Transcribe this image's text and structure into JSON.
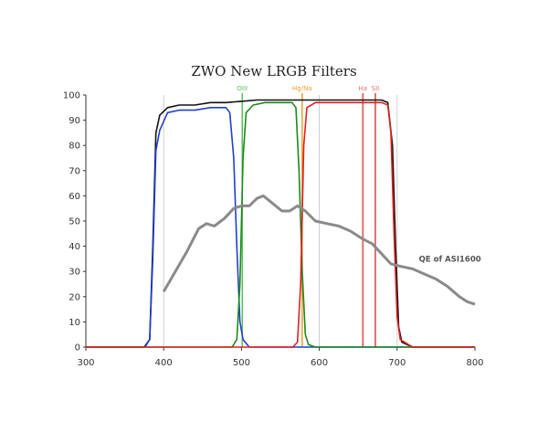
{
  "chart_data": {
    "type": "line",
    "title": "ZWO New LRGB Filters",
    "xlabel": "",
    "ylabel": "",
    "xlim": [
      300,
      800
    ],
    "ylim": [
      0,
      100
    ],
    "xticks": [
      300,
      400,
      500,
      600,
      700,
      800
    ],
    "yticks": [
      0,
      10,
      20,
      30,
      40,
      50,
      60,
      70,
      80,
      90,
      100
    ],
    "grid": false,
    "series": [
      {
        "color": "#111111",
        "points": [
          [
            300,
            0
          ],
          [
            375,
            0
          ],
          [
            382,
            3
          ],
          [
            386,
            40
          ],
          [
            390,
            85
          ],
          [
            395,
            92
          ],
          [
            405,
            95
          ],
          [
            420,
            96
          ],
          [
            440,
            96
          ],
          [
            460,
            97
          ],
          [
            480,
            97
          ],
          [
            500,
            97.5
          ],
          [
            520,
            98
          ],
          [
            540,
            98
          ],
          [
            560,
            98
          ],
          [
            580,
            98
          ],
          [
            600,
            98
          ],
          [
            620,
            98
          ],
          [
            640,
            98
          ],
          [
            660,
            98
          ],
          [
            680,
            98
          ],
          [
            688,
            97
          ],
          [
            694,
            80
          ],
          [
            698,
            40
          ],
          [
            702,
            8
          ],
          [
            706,
            2
          ],
          [
            720,
            0
          ],
          [
            800,
            0
          ]
        ]
      },
      {
        "color": "#1f3fcf",
        "points": [
          [
            300,
            0
          ],
          [
            376,
            0
          ],
          [
            382,
            3
          ],
          [
            386,
            35
          ],
          [
            390,
            78
          ],
          [
            395,
            86
          ],
          [
            405,
            93
          ],
          [
            420,
            94
          ],
          [
            440,
            94
          ],
          [
            460,
            95
          ],
          [
            480,
            95
          ],
          [
            485,
            93
          ],
          [
            490,
            75
          ],
          [
            494,
            40
          ],
          [
            498,
            10
          ],
          [
            502,
            3
          ],
          [
            510,
            0
          ],
          [
            800,
            0
          ]
        ]
      },
      {
        "color": "#1a8a1a",
        "points": [
          [
            300,
            0
          ],
          [
            488,
            0
          ],
          [
            494,
            3
          ],
          [
            498,
            25
          ],
          [
            502,
            75
          ],
          [
            506,
            93
          ],
          [
            515,
            96
          ],
          [
            530,
            97
          ],
          [
            550,
            97
          ],
          [
            565,
            97
          ],
          [
            570,
            95
          ],
          [
            574,
            70
          ],
          [
            578,
            30
          ],
          [
            582,
            5
          ],
          [
            586,
            1
          ],
          [
            595,
            0
          ],
          [
            800,
            0
          ]
        ]
      },
      {
        "color": "#e02020",
        "points": [
          [
            300,
            0
          ],
          [
            566,
            0
          ],
          [
            572,
            2
          ],
          [
            576,
            25
          ],
          [
            580,
            80
          ],
          [
            584,
            95
          ],
          [
            595,
            97
          ],
          [
            620,
            97
          ],
          [
            640,
            97
          ],
          [
            660,
            97
          ],
          [
            680,
            97
          ],
          [
            688,
            96
          ],
          [
            692,
            85
          ],
          [
            696,
            45
          ],
          [
            700,
            12
          ],
          [
            704,
            3
          ],
          [
            720,
            0
          ],
          [
            800,
            0
          ]
        ]
      },
      {
        "name": "QE of ASI1600",
        "color": "#8a8a8a",
        "points": [
          [
            400,
            22
          ],
          [
            415,
            30
          ],
          [
            430,
            38
          ],
          [
            445,
            47
          ],
          [
            455,
            49
          ],
          [
            465,
            48
          ],
          [
            478,
            51
          ],
          [
            490,
            55
          ],
          [
            500,
            56
          ],
          [
            510,
            56
          ],
          [
            520,
            59
          ],
          [
            528,
            60
          ],
          [
            540,
            57
          ],
          [
            552,
            54
          ],
          [
            562,
            54
          ],
          [
            572,
            56
          ],
          [
            582,
            54
          ],
          [
            595,
            50
          ],
          [
            610,
            49
          ],
          [
            625,
            48
          ],
          [
            640,
            46
          ],
          [
            655,
            43
          ],
          [
            668,
            41
          ],
          [
            680,
            37
          ],
          [
            692,
            33
          ],
          [
            705,
            32
          ],
          [
            720,
            31
          ],
          [
            735,
            29
          ],
          [
            750,
            27
          ],
          [
            765,
            24
          ],
          [
            780,
            20
          ],
          [
            790,
            18
          ],
          [
            800,
            17
          ]
        ]
      }
    ],
    "lines": [
      {
        "label": "OIII",
        "x": 501,
        "color": "#5cbf5c"
      },
      {
        "label": "Hg/Na",
        "x": 578,
        "color": "#e6a030"
      },
      {
        "label": "Ha",
        "x": 656,
        "color": "#e07070"
      },
      {
        "label": "SII",
        "x": 672,
        "color": "#e07070"
      }
    ],
    "extra_vlines": [
      {
        "x": 600,
        "color": "#c8c8e0"
      },
      {
        "x": 700,
        "color": "#d0d0d0"
      },
      {
        "x": 400,
        "color": "#d0d0d0"
      }
    ]
  }
}
